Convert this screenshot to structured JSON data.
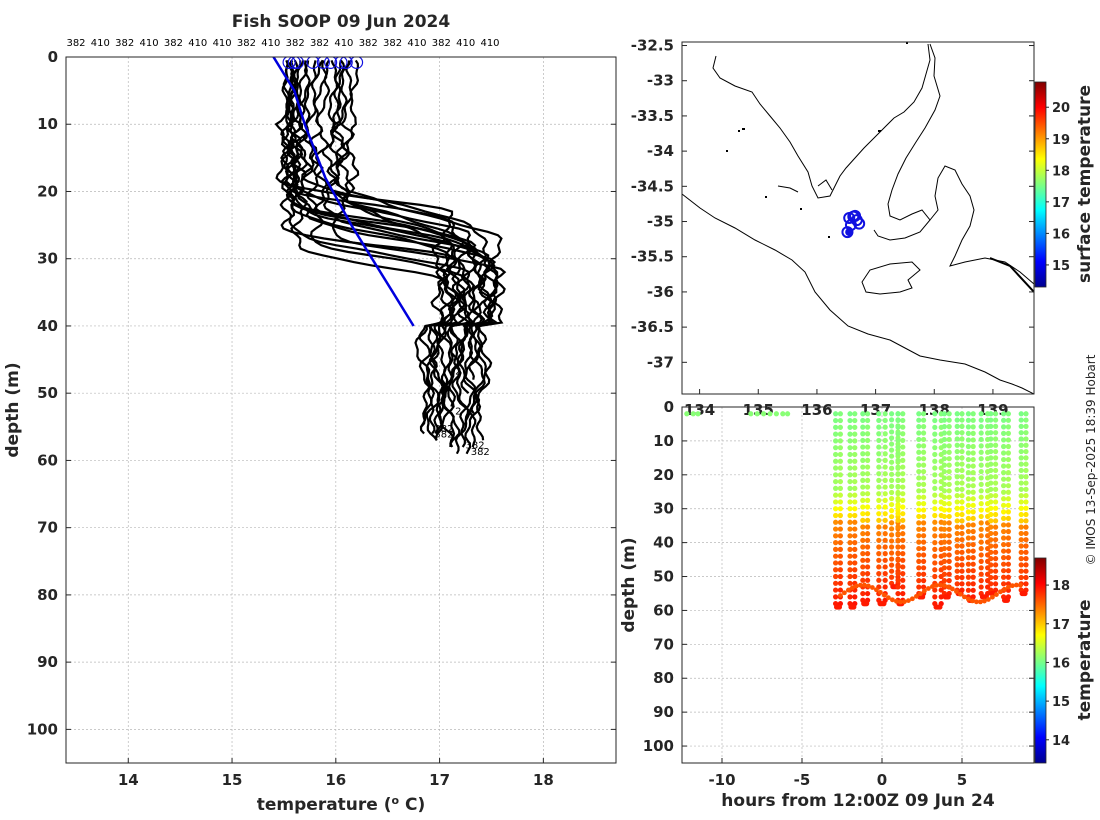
{
  "chart_data": [
    {
      "id": "profiles",
      "type": "line",
      "title": "Fish SOOP 09 Jun 2024",
      "xlabel": "temperature (",
      "xlabel_sup": "o",
      "xlabel_end": " C)",
      "ylabel": "depth (m)",
      "xlim": [
        13.4,
        18.7
      ],
      "ylim": [
        105,
        0
      ],
      "xticks": [
        14,
        15,
        16,
        17,
        18
      ],
      "yticks": [
        0,
        10,
        20,
        30,
        40,
        50,
        60,
        70,
        80,
        90,
        100
      ],
      "top_labels": [
        "382",
        "410",
        "382",
        "410",
        "382",
        "410",
        "410",
        "382",
        "410",
        "382",
        "382",
        "410",
        "382",
        "382",
        "410",
        "382",
        "410",
        "410"
      ],
      "reference_line": {
        "color": "#0000dd",
        "points": [
          [
            15.4,
            0
          ],
          [
            15.6,
            5
          ],
          [
            15.7,
            10
          ],
          [
            15.9,
            18
          ],
          [
            16.15,
            25
          ],
          [
            16.35,
            30
          ],
          [
            16.55,
            35
          ],
          [
            16.75,
            40
          ]
        ]
      },
      "start_markers": [
        15.55,
        15.6,
        15.63,
        15.78,
        15.88,
        15.95,
        16.05,
        16.1,
        16.2
      ],
      "profiles": [
        {
          "surf": 15.5,
          "mix": 15.55,
          "tc": 21,
          "tw": 5,
          "deep": 16.95,
          "end": 56
        },
        {
          "surf": 15.55,
          "mix": 15.5,
          "tc": 22,
          "tw": 5,
          "deep": 17.0,
          "end": 57
        },
        {
          "surf": 15.6,
          "mix": 15.55,
          "tc": 24,
          "tw": 6,
          "deep": 16.85,
          "end": 55
        },
        {
          "surf": 15.55,
          "mix": 15.6,
          "tc": 26,
          "tw": 6,
          "deep": 16.9,
          "end": 56
        },
        {
          "surf": 15.6,
          "mix": 15.55,
          "tc": 28,
          "tw": 5,
          "deep": 17.05,
          "end": 57
        },
        {
          "surf": 15.65,
          "mix": 15.6,
          "tc": 23,
          "tw": 7,
          "deep": 17.1,
          "end": 58
        },
        {
          "surf": 15.75,
          "mix": 15.65,
          "tc": 25,
          "tw": 6,
          "deep": 17.2,
          "end": 59
        },
        {
          "surf": 15.8,
          "mix": 15.7,
          "tc": 27,
          "tw": 7,
          "deep": 17.3,
          "end": 59
        },
        {
          "surf": 15.85,
          "mix": 15.75,
          "tc": 22,
          "tw": 8,
          "deep": 17.25,
          "end": 58
        },
        {
          "surf": 15.95,
          "mix": 15.85,
          "tc": 26,
          "tw": 8,
          "deep": 17.35,
          "end": 58
        },
        {
          "surf": 16.0,
          "mix": 15.95,
          "tc": 29,
          "tw": 6,
          "deep": 17.4,
          "end": 57
        },
        {
          "surf": 16.05,
          "mix": 16.0,
          "tc": 24,
          "tw": 8,
          "deep": 17.15,
          "end": 52
        },
        {
          "surf": 16.1,
          "mix": 16.05,
          "tc": 27,
          "tw": 7,
          "deep": 17.35,
          "end": 48
        },
        {
          "surf": 16.15,
          "mix": 16.1,
          "tc": 25,
          "tw": 9,
          "deep": 17.2,
          "end": 55
        },
        {
          "surf": 15.9,
          "mix": 15.8,
          "tc": 30,
          "tw": 6,
          "deep": 17.05,
          "end": 56
        },
        {
          "surf": 15.7,
          "mix": 15.65,
          "tc": 31,
          "tw": 5,
          "deep": 16.95,
          "end": 57
        },
        {
          "surf": 16.05,
          "mix": 16.0,
          "tc": 23,
          "tw": 9,
          "deep": 17.4,
          "end": 53
        },
        {
          "surf": 15.6,
          "mix": 15.55,
          "tc": 29,
          "tw": 7,
          "deep": 17.1,
          "end": 58
        },
        {
          "surf": 16.2,
          "mix": 16.15,
          "tc": 26,
          "tw": 10,
          "deep": 17.3,
          "end": 50
        },
        {
          "surf": 15.65,
          "mix": 15.6,
          "tc": 25,
          "tw": 6,
          "deep": 16.9,
          "end": 56
        }
      ],
      "end_labels": [
        {
          "t": 17.15,
          "d": 47.2,
          "text": "2"
        },
        {
          "t": 17.15,
          "d": 53.2,
          "text": "2"
        },
        {
          "t": 16.95,
          "d": 55.8,
          "text": "382"
        },
        {
          "t": 16.95,
          "d": 56.6,
          "text": "382"
        },
        {
          "t": 17.25,
          "d": 58.2,
          "text": "382"
        },
        {
          "t": 17.3,
          "d": 59.2,
          "text": "382"
        }
      ]
    },
    {
      "id": "map",
      "type": "scatter",
      "xticks": [
        "134",
        "135",
        "136",
        "137",
        "138",
        "139"
      ],
      "xlim": [
        133.7,
        139.7
      ],
      "ylim": [
        -37.45,
        -32.45
      ],
      "yticks": [
        -32.5,
        -33,
        -33.5,
        -34,
        -34.5,
        -35,
        -35.5,
        -36,
        -36.5,
        -37
      ],
      "colorbar_label": "surface temperature",
      "colorbar_ticks": [
        15,
        16,
        17,
        18,
        19,
        20
      ],
      "colorbar_range": [
        14.3,
        20.8
      ],
      "markers": [
        [
          136.55,
          -34.95
        ],
        [
          136.62,
          -34.93
        ],
        [
          136.68,
          -34.98
        ],
        [
          136.58,
          -35.05
        ],
        [
          136.72,
          -35.03
        ],
        [
          136.52,
          -35.15
        ],
        [
          136.65,
          -34.92
        ]
      ]
    },
    {
      "id": "timeseries",
      "type": "scatter",
      "xlabel": "hours from 12:00Z 09 Jun 24",
      "ylabel": "depth (m)",
      "xlim": [
        -12.5,
        9.5
      ],
      "ylim": [
        105,
        0
      ],
      "xticks": [
        -10,
        -5,
        0,
        5
      ],
      "yticks": [
        0,
        10,
        20,
        30,
        40,
        50,
        60,
        70,
        80,
        90,
        100
      ],
      "colorbar_label": "temperature",
      "colorbar_ticks": [
        14,
        15,
        16,
        17,
        18
      ],
      "colorbar_range": [
        13.4,
        18.7
      ],
      "surface_hours": [
        -12.2,
        -11.8,
        -11.5,
        -8.2,
        -7.8,
        -7.4,
        -7.0,
        -6.6,
        -6.2,
        -5.9
      ],
      "casts": [
        {
          "t0": -2.9,
          "t1": -2.6,
          "dmax": 58
        },
        {
          "t0": -2.0,
          "t1": -1.7,
          "dmax": 58
        },
        {
          "t0": -1.2,
          "t1": -0.9,
          "dmax": 57
        },
        {
          "t0": -0.2,
          "t1": 0.2,
          "dmax": 57
        },
        {
          "t0": 0.6,
          "t1": 1.0,
          "dmax": 52
        },
        {
          "t0": 1.0,
          "t1": 1.3,
          "dmax": 57
        },
        {
          "t0": 2.3,
          "t1": 2.6,
          "dmax": 55
        },
        {
          "t0": 3.3,
          "t1": 3.7,
          "dmax": 58
        },
        {
          "t0": 3.9,
          "t1": 4.2,
          "dmax": 55
        },
        {
          "t0": 4.7,
          "t1": 5.0,
          "dmax": 54
        },
        {
          "t0": 5.4,
          "t1": 5.7,
          "dmax": 56
        },
        {
          "t0": 6.2,
          "t1": 6.6,
          "dmax": 55
        },
        {
          "t0": 6.8,
          "t1": 7.1,
          "dmax": 54
        },
        {
          "t0": 7.6,
          "t1": 7.9,
          "dmax": 56
        },
        {
          "t0": 8.7,
          "t1": 9.0,
          "dmax": 54
        }
      ]
    }
  ],
  "credit": "© IMOS 13-Sep-2025 18:39 Hobart",
  "colors": {
    "profile": "#000000",
    "reference": "#0000dd",
    "marker": "#1010e0"
  }
}
